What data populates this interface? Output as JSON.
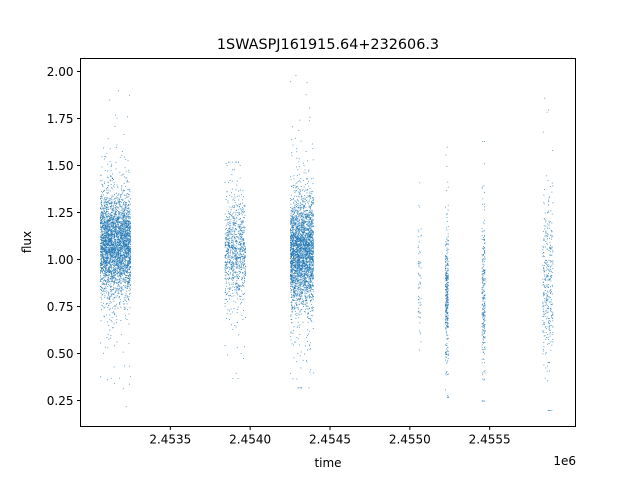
{
  "chart_data": {
    "type": "scatter",
    "title": "1SWASPJ161915.64+232606.3",
    "xlabel": "time",
    "ylabel": "flux",
    "x_offset_label": "1e6",
    "xlim": [
      2452937.5,
      2456037.5
    ],
    "ylim": [
      0.112,
      2.069
    ],
    "xticks": [
      2453500,
      2454000,
      2454500,
      2455000,
      2455500
    ],
    "xtick_labels": [
      "2.4535",
      "2.4540",
      "2.4545",
      "2.4550",
      "2.4555"
    ],
    "yticks": [
      0.25,
      0.5,
      0.75,
      1.0,
      1.25,
      1.5,
      1.75,
      2.0
    ],
    "ytick_labels": [
      "0.25",
      "0.50",
      "0.75",
      "1.00",
      "1.25",
      "1.50",
      "1.75",
      "2.00"
    ],
    "grid": false,
    "color": "#1f77b4",
    "seasons": [
      {
        "t_start": 2453060,
        "t_end": 2453250,
        "n_points": 3500,
        "flux_center": 1.08,
        "flux_spread": 0.13,
        "flux_min": 0.22,
        "flux_max": 1.9
      },
      {
        "t_start": 2453840,
        "t_end": 2453970,
        "n_points": 900,
        "flux_center": 1.05,
        "flux_spread": 0.13,
        "flux_min": 0.37,
        "flux_max": 1.52
      },
      {
        "t_start": 2454250,
        "t_end": 2454395,
        "n_points": 3000,
        "flux_center": 1.04,
        "flux_spread": 0.14,
        "flux_min": 0.32,
        "flux_max": 1.98
      },
      {
        "t_start": 2455050,
        "t_end": 2455070,
        "n_points": 60,
        "flux_center": 0.85,
        "flux_spread": 0.2,
        "flux_min": 0.23,
        "flux_max": 1.41
      },
      {
        "t_start": 2455220,
        "t_end": 2455240,
        "n_points": 350,
        "flux_center": 0.8,
        "flux_spread": 0.17,
        "flux_min": 0.27,
        "flux_max": 1.6
      },
      {
        "t_start": 2455450,
        "t_end": 2455470,
        "n_points": 250,
        "flux_center": 0.8,
        "flux_spread": 0.2,
        "flux_min": 0.25,
        "flux_max": 1.63
      },
      {
        "t_start": 2455830,
        "t_end": 2455895,
        "n_points": 350,
        "flux_center": 0.88,
        "flux_spread": 0.22,
        "flux_min": 0.2,
        "flux_max": 1.86
      }
    ]
  }
}
